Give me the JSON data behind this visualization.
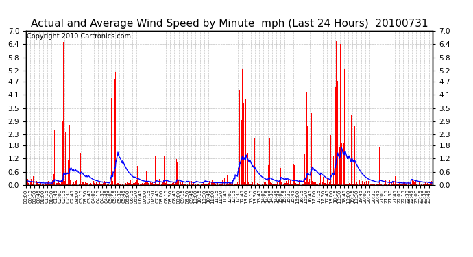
{
  "title": "Actual and Average Wind Speed by Minute  mph (Last 24 Hours)  20100731",
  "copyright": "Copyright 2010 Cartronics.com",
  "yticks": [
    0.0,
    0.6,
    1.2,
    1.8,
    2.3,
    2.9,
    3.5,
    4.1,
    4.7,
    5.2,
    5.8,
    6.4,
    7.0
  ],
  "ymax": 7.0,
  "ymin": 0.0,
  "bar_color": "#ff0000",
  "line_color": "#0000ff",
  "background_color": "#ffffff",
  "grid_color": "#bbbbbb",
  "title_fontsize": 11,
  "copyright_fontsize": 7,
  "n_minutes": 1440,
  "figwidth": 6.9,
  "figheight": 3.75,
  "dpi": 100
}
